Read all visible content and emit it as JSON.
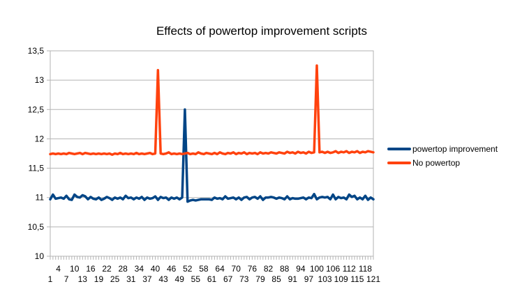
{
  "chart_data": {
    "type": "line",
    "title": "Effects of powertop improvement scripts",
    "xlabel": "",
    "ylabel": "",
    "ylim": [
      10,
      13.5
    ],
    "yticks": [
      10,
      10.5,
      11,
      11.5,
      12,
      12.5,
      13,
      13.5
    ],
    "ytick_labels": [
      "10",
      "10,5",
      "11",
      "11,5",
      "12",
      "12,5",
      "13",
      "13,5"
    ],
    "x": [
      1,
      2,
      3,
      4,
      5,
      6,
      7,
      8,
      9,
      10,
      11,
      12,
      13,
      14,
      15,
      16,
      17,
      18,
      19,
      20,
      21,
      22,
      23,
      24,
      25,
      26,
      27,
      28,
      29,
      30,
      31,
      32,
      33,
      34,
      35,
      36,
      37,
      38,
      39,
      40,
      41,
      42,
      43,
      44,
      45,
      46,
      47,
      48,
      49,
      50,
      51,
      52,
      53,
      54,
      55,
      56,
      57,
      58,
      59,
      60,
      61,
      62,
      63,
      64,
      65,
      66,
      67,
      68,
      69,
      70,
      71,
      72,
      73,
      74,
      75,
      76,
      77,
      78,
      79,
      80,
      81,
      82,
      83,
      84,
      85,
      86,
      87,
      88,
      89,
      90,
      91,
      92,
      93,
      94,
      95,
      96,
      97,
      98,
      99,
      100,
      101,
      102,
      103,
      104,
      105,
      106,
      107,
      108,
      109,
      110,
      111,
      112,
      113,
      114,
      115,
      116,
      117,
      118,
      119,
      120,
      121
    ],
    "xtick_labels_row1": [
      "4",
      "10",
      "16",
      "22",
      "28",
      "34",
      "40",
      "46",
      "52",
      "58",
      "64",
      "70",
      "76",
      "82",
      "88",
      "94",
      "100",
      "106",
      "112",
      "118"
    ],
    "xtick_labels_row2": [
      "1",
      "7",
      "13",
      "19",
      "25",
      "31",
      "37",
      "43",
      "49",
      "55",
      "61",
      "67",
      "73",
      "79",
      "85",
      "91",
      "97",
      "103",
      "109",
      "115",
      "121"
    ],
    "grid": {
      "horizontal": true,
      "vertical": false
    },
    "legend_position": "right",
    "series": [
      {
        "name": "powertop improvement",
        "color": "#004586",
        "values": [
          10.97,
          11.05,
          10.98,
          10.99,
          11.0,
          10.98,
          11.03,
          10.97,
          10.96,
          11.05,
          11.01,
          11.0,
          11.04,
          11.02,
          10.97,
          11.01,
          10.98,
          10.97,
          11.0,
          10.96,
          10.98,
          11.01,
          10.99,
          10.96,
          11.0,
          10.98,
          11.0,
          10.97,
          11.03,
          10.99,
          11.0,
          10.97,
          11.0,
          10.98,
          11.01,
          10.96,
          11.0,
          10.98,
          10.99,
          11.02,
          10.96,
          11.01,
          10.99,
          11.0,
          10.96,
          11.0,
          10.98,
          11.0,
          10.97,
          11.0,
          12.5,
          10.93,
          10.95,
          10.96,
          10.95,
          10.96,
          10.97,
          10.97,
          10.97,
          10.97,
          10.96,
          11.0,
          10.98,
          10.99,
          10.97,
          11.02,
          10.98,
          10.99,
          11.0,
          10.97,
          11.0,
          10.96,
          11.0,
          11.01,
          10.97,
          11.0,
          11.01,
          10.98,
          11.02,
          10.96,
          11.0,
          11.0,
          11.01,
          11.0,
          10.98,
          11.0,
          10.99,
          10.97,
          11.02,
          10.97,
          10.99,
          10.98,
          10.98,
          10.99,
          11.0,
          10.97,
          11.0,
          10.99,
          11.06,
          10.97,
          11.0,
          11.01,
          11.0,
          11.01,
          10.97,
          11.05,
          10.97,
          11.01,
          10.99,
          11.0,
          10.97,
          11.05,
          11.01,
          11.03,
          10.97,
          11.0,
          10.97,
          11.03,
          10.96,
          11.0,
          10.97
        ]
      },
      {
        "name": "No powertop",
        "color": "#ff420e",
        "values": [
          11.74,
          11.75,
          11.74,
          11.75,
          11.74,
          11.75,
          11.74,
          11.76,
          11.75,
          11.74,
          11.75,
          11.76,
          11.74,
          11.76,
          11.75,
          11.74,
          11.75,
          11.74,
          11.75,
          11.74,
          11.75,
          11.74,
          11.75,
          11.73,
          11.75,
          11.74,
          11.76,
          11.74,
          11.75,
          11.74,
          11.75,
          11.74,
          11.76,
          11.74,
          11.75,
          11.74,
          11.75,
          11.76,
          11.74,
          11.75,
          13.17,
          11.75,
          11.74,
          11.75,
          11.77,
          11.74,
          11.75,
          11.74,
          11.75,
          11.74,
          11.75,
          11.76,
          11.74,
          11.75,
          11.74,
          11.77,
          11.75,
          11.74,
          11.76,
          11.75,
          11.74,
          11.76,
          11.74,
          11.77,
          11.75,
          11.74,
          11.76,
          11.75,
          11.77,
          11.74,
          11.76,
          11.75,
          11.77,
          11.74,
          11.76,
          11.75,
          11.76,
          11.74,
          11.77,
          11.75,
          11.76,
          11.75,
          11.77,
          11.76,
          11.75,
          11.77,
          11.76,
          11.75,
          11.78,
          11.76,
          11.77,
          11.75,
          11.78,
          11.76,
          11.77,
          11.75,
          11.78,
          11.76,
          11.77,
          13.25,
          11.77,
          11.78,
          11.76,
          11.78,
          11.76,
          11.77,
          11.79,
          11.76,
          11.78,
          11.77,
          11.79,
          11.76,
          11.78,
          11.77,
          11.79,
          11.76,
          11.78,
          11.77,
          11.79,
          11.78,
          11.77
        ]
      }
    ]
  }
}
